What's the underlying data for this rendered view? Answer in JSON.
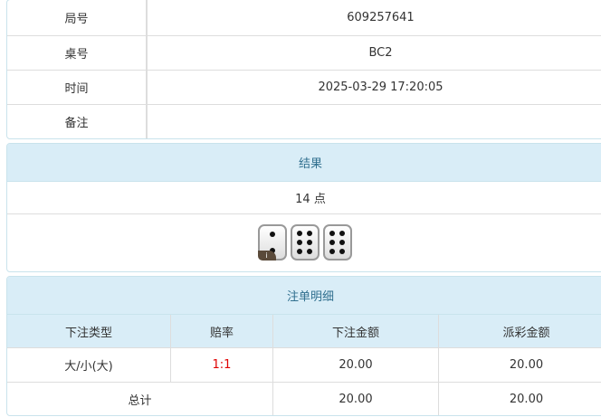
{
  "info": {
    "rows": [
      {
        "label": "局号",
        "value": "609257641"
      },
      {
        "label": "桌号",
        "value": "BC2"
      },
      {
        "label": "时间",
        "value": "2025-03-29 17:20:05"
      },
      {
        "label": "备注",
        "value": ""
      }
    ]
  },
  "result": {
    "title": "结果",
    "points": "14 点",
    "dice": [
      2,
      6,
      6
    ],
    "badge": "i"
  },
  "bets": {
    "title": "注单明细",
    "headers": [
      "下注类型",
      "赔率",
      "下注金额",
      "派彩金额"
    ],
    "rows": [
      {
        "type": "大/小(大)",
        "odds": "1:1",
        "amount": "20.00",
        "payout": "20.00"
      }
    ],
    "total": {
      "label": "总计",
      "amount": "20.00",
      "payout": "20.00"
    },
    "odds_color": "#e00000",
    "header_bg": "#d9edf7"
  }
}
